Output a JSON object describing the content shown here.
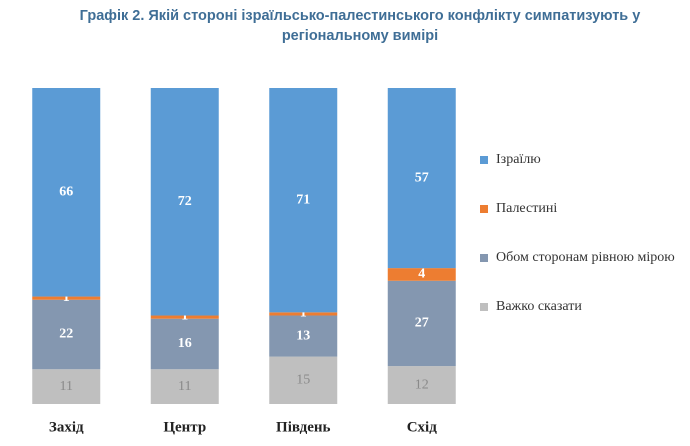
{
  "chart_data": {
    "type": "stacked_bar",
    "title": "Графік 2. Якій стороні ізраїльсько-палестинського конфлікту симпатизують у регіональному вимірі",
    "categories": [
      "Захід",
      "Центр",
      "Південь",
      "Схід"
    ],
    "series": [
      {
        "name": "Важко сказати",
        "color": "#bfbfbf",
        "values": [
          11,
          11,
          15,
          12
        ]
      },
      {
        "name": "Обом сторонам рівною мірою",
        "color": "#8497b0",
        "values": [
          22,
          16,
          13,
          27
        ]
      },
      {
        "name": "Палестині",
        "color": "#ed7d31",
        "values": [
          1,
          1,
          1,
          4
        ]
      },
      {
        "name": "Ізраїлю",
        "color": "#5b9bd5",
        "values": [
          66,
          72,
          71,
          57
        ]
      }
    ],
    "legend": "right"
  }
}
